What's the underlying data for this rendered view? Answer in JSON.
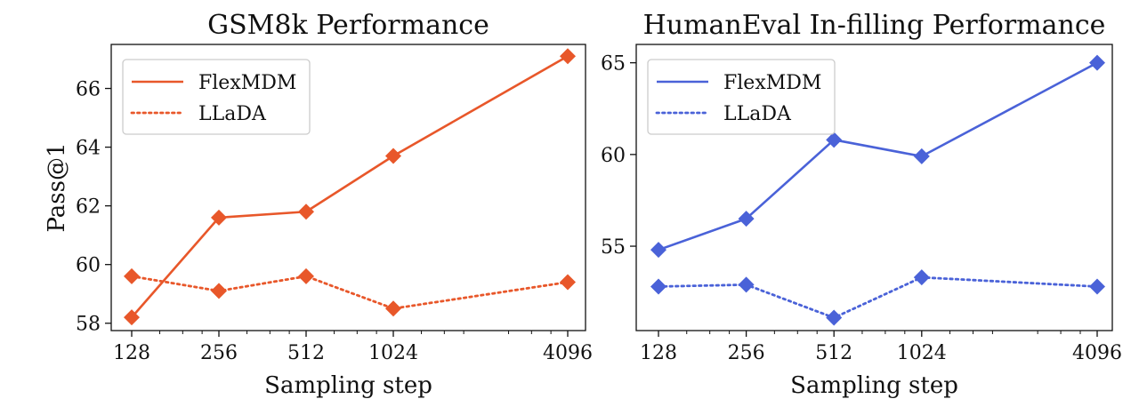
{
  "chart_data": [
    {
      "type": "line",
      "title": "GSM8k Performance",
      "xlabel": "Sampling step",
      "ylabel": "Pass@1",
      "xscale": "log2",
      "x": [
        128,
        256,
        512,
        1024,
        4096
      ],
      "xticks": [
        "128",
        "256",
        "512",
        "1024",
        "4096"
      ],
      "yticks": [
        "58",
        "60",
        "62",
        "64",
        "66"
      ],
      "ylim": [
        57.75,
        67.5
      ],
      "legend_position": "top-left",
      "series": [
        {
          "name": "FlexMDM",
          "style": "solid",
          "color": "#e8572a",
          "values": [
            58.2,
            61.6,
            61.8,
            63.7,
            67.1
          ]
        },
        {
          "name": "LLaDA",
          "style": "dotted",
          "color": "#e8572a",
          "values": [
            59.6,
            59.1,
            59.6,
            58.5,
            59.4
          ]
        }
      ]
    },
    {
      "type": "line",
      "title": "HumanEval In-filling Performance",
      "xlabel": "Sampling step",
      "ylabel": "",
      "xscale": "log2",
      "x": [
        128,
        256,
        512,
        1024,
        4096
      ],
      "xticks": [
        "128",
        "256",
        "512",
        "1024",
        "4096"
      ],
      "yticks": [
        "55",
        "60",
        "65"
      ],
      "ylim": [
        50.4,
        66.0
      ],
      "legend_position": "top-left",
      "series": [
        {
          "name": "FlexMDM",
          "style": "solid",
          "color": "#4a62d8",
          "values": [
            54.8,
            56.5,
            60.8,
            59.9,
            65.0
          ]
        },
        {
          "name": "LLaDA",
          "style": "dotted",
          "color": "#4a62d8",
          "values": [
            52.8,
            52.9,
            51.1,
            53.3,
            52.8
          ]
        }
      ]
    }
  ]
}
